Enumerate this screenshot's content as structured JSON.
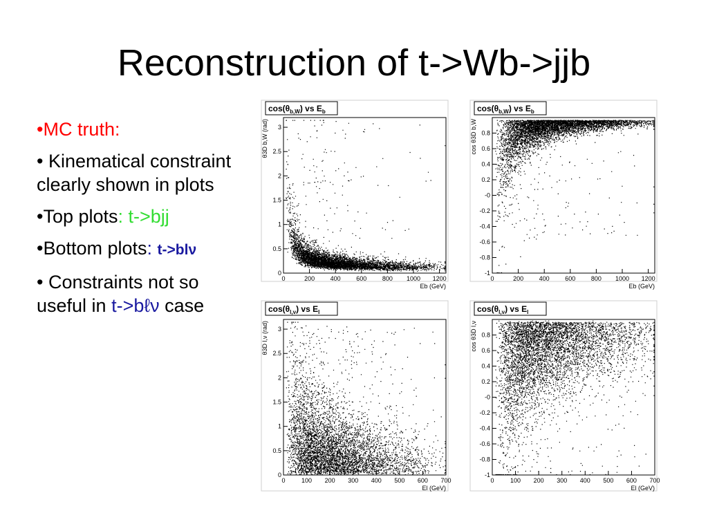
{
  "slide": {
    "title": "Reconstruction of t->Wb->jjb",
    "bullets": {
      "mc_truth": "•MC truth:",
      "kinematical": "• Kinematical constraint clearly shown in plots",
      "top_prefix": "•Top plots",
      "top_value": ": t->bjj",
      "bottom_prefix": "•Bottom plots",
      "bottom_colon": ": ",
      "bottom_value": "t->blν",
      "constraints_prefix": "• Constraints not so useful in ",
      "constraints_value": "t->bℓν",
      "constraints_suffix": " case"
    },
    "colors": {
      "red": "#ff0000",
      "green": "#33dd33",
      "navy": "#1a1aa0"
    }
  },
  "chart_data": [
    {
      "type": "scatter",
      "title": "cos(θb,W) vs Eb",
      "title_main": "cos(θ",
      "title_sub": "b,W",
      "title_mid": ") vs E",
      "title_sub2": "b",
      "xlabel": "Eb (GeV)",
      "ylabel": "θ3D b,W (rad)",
      "xlim": [
        0,
        1250
      ],
      "ylim": [
        0,
        3.2
      ],
      "xticks": [
        0,
        200,
        400,
        600,
        800,
        1000,
        1200
      ],
      "yticks": [
        0,
        0.5,
        1,
        1.5,
        2,
        2.5,
        3
      ],
      "ytick_labels": [
        "0",
        "0.5",
        "1",
        "1.5",
        "2",
        "2.5",
        "3"
      ],
      "density": {
        "form": "decay",
        "params": [
          0.09,
          0.13,
          45
        ]
      },
      "grid": false
    },
    {
      "type": "scatter",
      "title": "cos(θb,W) vs Eb",
      "title_main": "cos(θ",
      "title_sub": "b,W",
      "title_mid": ") vs E",
      "title_sub2": "b",
      "xlabel": "Eb (GeV)",
      "ylabel": "cos θ3D b,W",
      "xlim": [
        0,
        1250
      ],
      "ylim": [
        -1,
        1
      ],
      "xticks": [
        0,
        200,
        400,
        600,
        800,
        1000,
        1200
      ],
      "yticks": [
        -1,
        -0.8,
        -0.6,
        -0.4,
        -0.2,
        0,
        0.2,
        0.4,
        0.6,
        0.8
      ],
      "ytick_labels": [
        "-1",
        "-0.8",
        "-0.6",
        "-0.4",
        "-0.2",
        "-0",
        "0.2",
        "0.4",
        "0.6",
        "0.8"
      ],
      "density": {
        "form": "saturate",
        "params": [
          0.96,
          4400,
          55
        ]
      },
      "grid": false
    },
    {
      "type": "scatter",
      "title": "cos(θl,ν) vs El",
      "title_main": "cos(θ",
      "title_sub": "l,ν",
      "title_mid": ") vs E",
      "title_sub2": "l",
      "xlabel": "El (GeV)",
      "ylabel": "θ3D l,ν (rad)",
      "xlim": [
        0,
        700
      ],
      "ylim": [
        0,
        3.2
      ],
      "xticks": [
        0,
        100,
        200,
        300,
        400,
        500,
        600,
        700
      ],
      "yticks": [
        0,
        0.5,
        1,
        1.5,
        2,
        2.5,
        3
      ],
      "ytick_labels": [
        "0",
        "0.5",
        "1",
        "1.5",
        "2",
        "2.5",
        "3"
      ],
      "density": {
        "form": "diffuse_decay",
        "params": [
          0.15,
          0.25,
          110
        ]
      },
      "grid": false
    },
    {
      "type": "scatter",
      "title": "cos(θl,ν) vs El",
      "title_main": "cos(θ",
      "title_sub": "l,ν",
      "title_mid": ") vs E",
      "title_sub2": "l",
      "xlabel": "El (GeV)",
      "ylabel": "cos θ3D l,ν",
      "xlim": [
        0,
        700
      ],
      "ylim": [
        -1,
        1
      ],
      "xticks": [
        0,
        100,
        200,
        300,
        400,
        500,
        600,
        700
      ],
      "yticks": [
        -1,
        -0.8,
        -0.6,
        -0.4,
        -0.2,
        0,
        0.2,
        0.4,
        0.6,
        0.8
      ],
      "ytick_labels": [
        "-1",
        "-0.8",
        "-0.6",
        "-0.4",
        "-0.2",
        "-0",
        "0.2",
        "0.4",
        "0.6",
        "0.8"
      ],
      "density": {
        "form": "diffuse_saturate",
        "params": [
          0.9,
          1800,
          30
        ]
      },
      "grid": false
    }
  ]
}
